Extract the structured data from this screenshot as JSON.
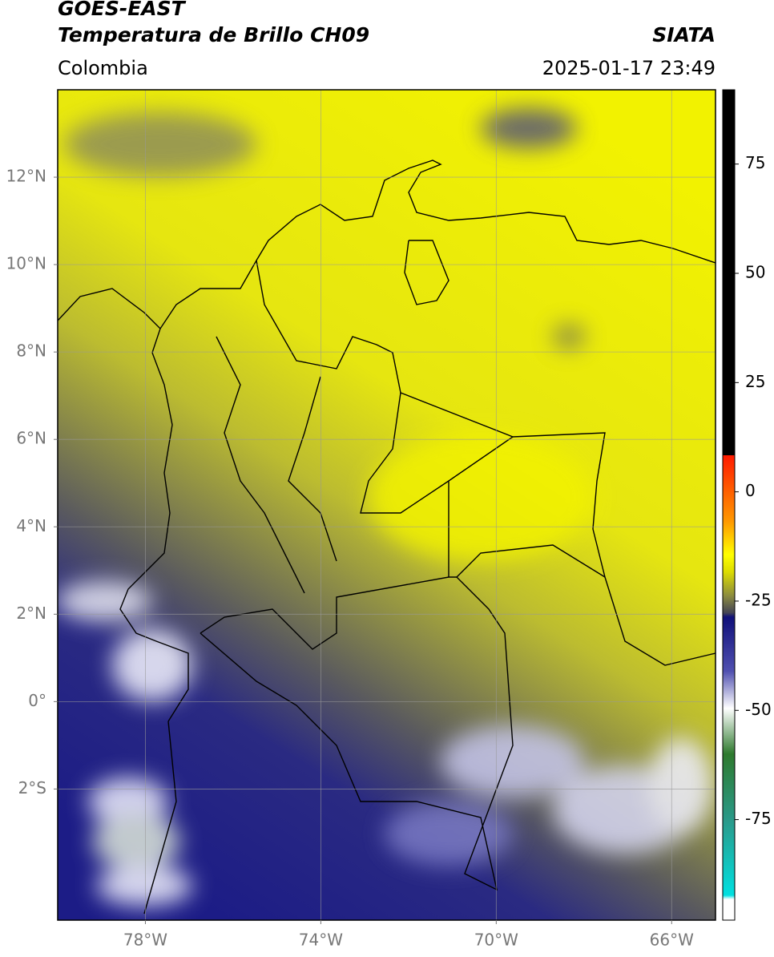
{
  "header": {
    "title": "GOES-EAST",
    "subtitle": "Temperatura de Brillo CH09",
    "source": "SIATA",
    "region": "Colombia",
    "timestamp": "2025-01-17 23:49"
  },
  "map": {
    "xlim": [
      -80,
      -65
    ],
    "ylim": [
      -5,
      14
    ],
    "grid": true,
    "xticks": [
      {
        "value": -78,
        "label": "78°W"
      },
      {
        "value": -74,
        "label": "74°W"
      },
      {
        "value": -70,
        "label": "70°W"
      },
      {
        "value": -66,
        "label": "66°W"
      }
    ],
    "yticks": [
      {
        "value": 12,
        "label": "12°N"
      },
      {
        "value": 10,
        "label": "10°N"
      },
      {
        "value": 8,
        "label": "8°N"
      },
      {
        "value": 6,
        "label": "6°N"
      },
      {
        "value": 4,
        "label": "4°N"
      },
      {
        "value": 2,
        "label": "2°N"
      },
      {
        "value": 0,
        "label": "0°"
      },
      {
        "value": -2,
        "label": "2°S"
      }
    ]
  },
  "colorbar": {
    "lim": [
      -98,
      92
    ],
    "ticks": [
      75,
      50,
      25,
      0,
      -25,
      -50,
      -75
    ]
  }
}
